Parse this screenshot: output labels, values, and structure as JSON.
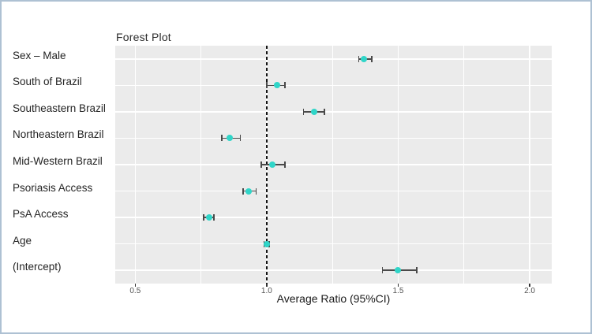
{
  "chart_data": {
    "type": "scatter",
    "subtype": "forest-plot",
    "title": "Forest Plot",
    "xlabel": "Average Ratio (95%CI)",
    "ylabel": "",
    "xlim": [
      0.424,
      2.084
    ],
    "x_ticks": [
      0.5,
      1.0,
      1.5,
      2.0
    ],
    "x_tick_labels": [
      "0.5",
      "1.0",
      "1.5",
      "2.0"
    ],
    "x_minor_ticks": [
      0.75,
      1.25,
      1.75
    ],
    "reference_line": 1.0,
    "grid": "on",
    "legend": "none",
    "categories": [
      "Sex – Male",
      "South of Brazil",
      "Southeastern Brazil",
      "Northeastern Brazil",
      "Mid-Western Brazil",
      "Psoriasis Access",
      "PsA Access",
      "Age",
      "(Intercept)"
    ],
    "series": [
      {
        "name": "Average Ratio (95%CI)",
        "points": [
          {
            "label": "Sex – Male",
            "value": 1.37,
            "ci_low": 1.35,
            "ci_high": 1.4
          },
          {
            "label": "South of Brazil",
            "value": 1.04,
            "ci_low": 1.0,
            "ci_high": 1.07
          },
          {
            "label": "Southeastern Brazil",
            "value": 1.18,
            "ci_low": 1.14,
            "ci_high": 1.22
          },
          {
            "label": "Northeastern Brazil",
            "value": 0.86,
            "ci_low": 0.83,
            "ci_high": 0.9
          },
          {
            "label": "Mid-Western Brazil",
            "value": 1.02,
            "ci_low": 0.98,
            "ci_high": 1.07
          },
          {
            "label": "Psoriasis Access",
            "value": 0.93,
            "ci_low": 0.91,
            "ci_high": 0.96
          },
          {
            "label": "PsA Access",
            "value": 0.78,
            "ci_low": 0.76,
            "ci_high": 0.8
          },
          {
            "label": "Age",
            "value": 1.0,
            "ci_low": 0.99,
            "ci_high": 1.01
          },
          {
            "label": "(Intercept)",
            "value": 1.5,
            "ci_low": 1.44,
            "ci_high": 1.57
          }
        ]
      }
    ],
    "colors": {
      "point": "#30d5c8",
      "error_bar": "#4a4a4a",
      "panel_background": "#ebebeb",
      "gridline": "#ffffff",
      "reference_line": "#141414",
      "frame_border": "#aec1d3"
    }
  }
}
